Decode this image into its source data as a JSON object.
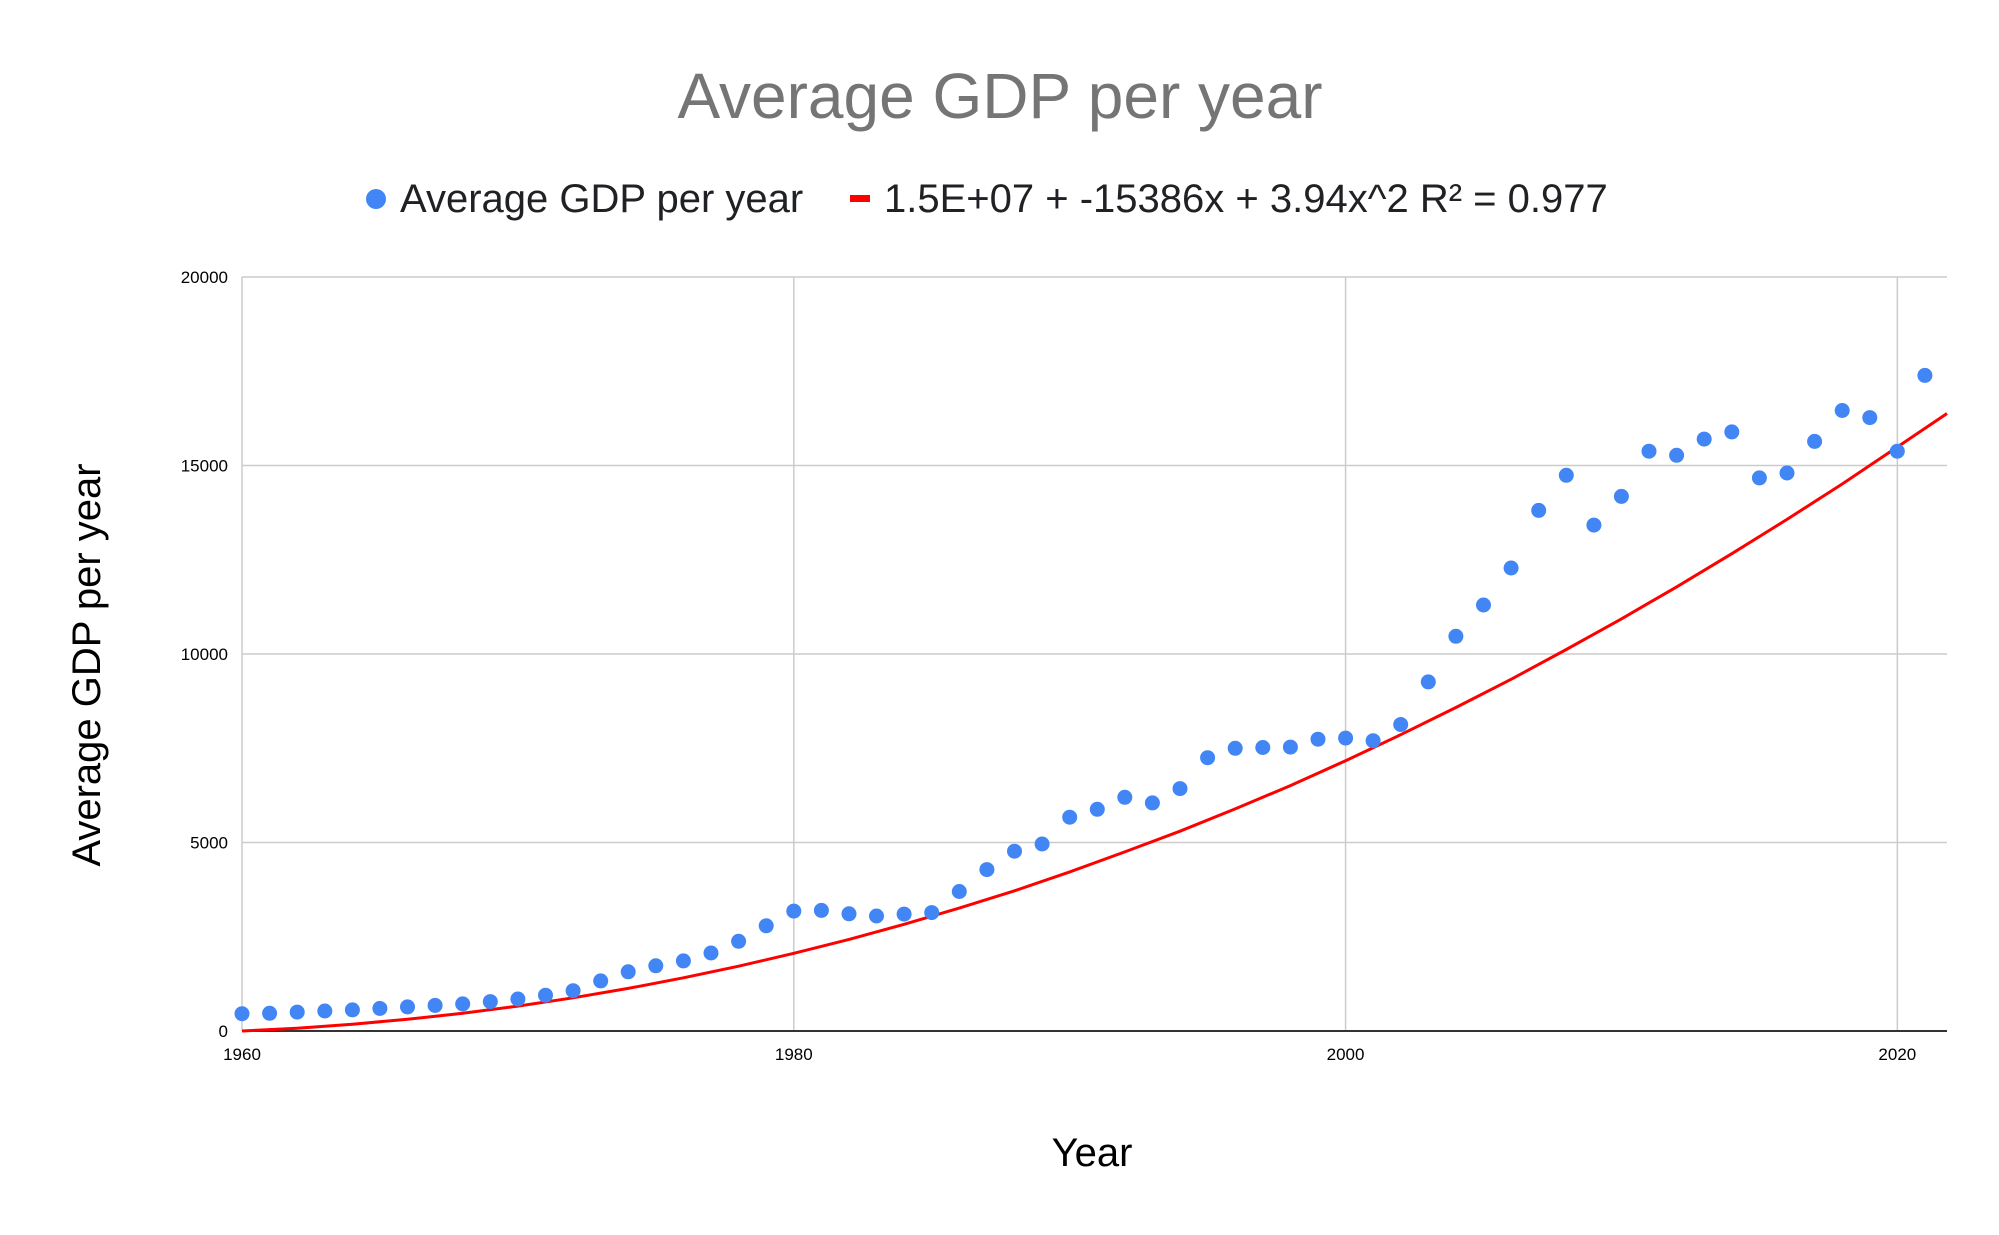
{
  "chart_data": {
    "type": "scatter",
    "title": "Average GDP per year",
    "xlabel": "Year",
    "ylabel": "Average GDP per year",
    "xlim": [
      1960,
      2021.8
    ],
    "ylim": [
      0,
      20000
    ],
    "x_ticks": [
      "1960",
      "1980",
      "2000",
      "2020"
    ],
    "y_ticks": [
      "0",
      "5000",
      "10000",
      "15000",
      "20000"
    ],
    "grid": true,
    "legend_position": "top",
    "colors": {
      "series": "#4285f4",
      "trendline": "#ff0000"
    },
    "series": [
      {
        "name": "Average GDP per year",
        "x": [
          1960,
          1961,
          1962,
          1963,
          1964,
          1965,
          1966,
          1967,
          1968,
          1969,
          1970,
          1971,
          1972,
          1973,
          1974,
          1975,
          1976,
          1977,
          1978,
          1979,
          1980,
          1981,
          1982,
          1983,
          1984,
          1985,
          1986,
          1987,
          1988,
          1989,
          1990,
          1991,
          1992,
          1993,
          1994,
          1995,
          1996,
          1997,
          1998,
          1999,
          2000,
          2001,
          2002,
          2003,
          2004,
          2005,
          2006,
          2007,
          2008,
          2009,
          2010,
          2011,
          2012,
          2013,
          2014,
          2015,
          2016,
          2017,
          2018,
          2019,
          2020,
          2021
        ],
        "y": [
          460,
          470,
          500,
          530,
          560,
          600,
          640,
          680,
          720,
          780,
          850,
          950,
          1070,
          1330,
          1570,
          1730,
          1860,
          2070,
          2380,
          2790,
          3180,
          3200,
          3110,
          3050,
          3100,
          3140,
          3700,
          4280,
          4770,
          4960,
          5670,
          5880,
          6200,
          6050,
          6430,
          7250,
          7500,
          7520,
          7530,
          7740,
          7770,
          7700,
          8130,
          9260,
          10470,
          11300,
          12280,
          13810,
          14740,
          13420,
          14180,
          15380,
          15270,
          15700,
          15890,
          14670,
          14800,
          15640,
          16460,
          16270,
          15380,
          17390
        ]
      }
    ],
    "trendline": {
      "type": "polynomial",
      "degree": 2,
      "label": "1.5E+07 + -15386x + 3.94x^2 R² = 0.977",
      "x": [
        1960,
        1962,
        1964,
        1966,
        1968,
        1970,
        1972,
        1974,
        1976,
        1978,
        1980,
        1982,
        1984,
        1986,
        1988,
        1990,
        1992,
        1994,
        1996,
        1998,
        2000,
        2002,
        2004,
        2006,
        2008,
        2010,
        2012,
        2014,
        2016,
        2018,
        2020,
        2021.8
      ],
      "y": [
        0,
        75,
        180,
        310,
        470,
        660,
        880,
        1130,
        1410,
        1720,
        2060,
        2430,
        2830,
        3260,
        3720,
        4220,
        4750,
        5300,
        5890,
        6510,
        7170,
        7860,
        8580,
        9330,
        10120,
        10930,
        11780,
        12660,
        13570,
        14510,
        15490,
        16380
      ]
    }
  }
}
